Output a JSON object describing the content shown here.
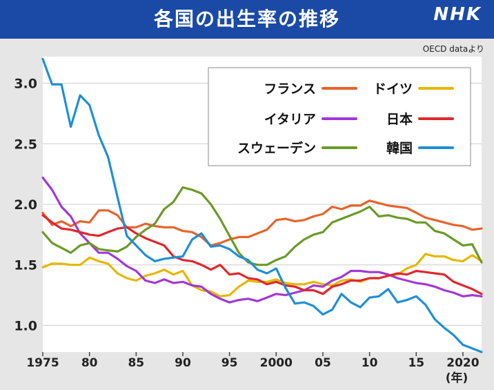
{
  "header": {
    "title": "各国の出生率の推移",
    "brand": "NHK"
  },
  "source_note": "OECD dataより",
  "colors": {
    "header_bg": "#1a4aa6",
    "plot_bg": "#ffffff",
    "page_bg": "#e6e6e6"
  },
  "chart_data": {
    "type": "line",
    "title": "各国の出生率の推移",
    "xlabel": "",
    "ylabel": "",
    "xlim": [
      1975,
      2022
    ],
    "ylim": [
      0.78,
      3.22
    ],
    "y_ticks": [
      1.0,
      1.5,
      2.0,
      2.5,
      3.0
    ],
    "y_tick_labels": [
      "1.0",
      "1.5",
      "2.0",
      "2.5",
      "3.0"
    ],
    "x_ticks": [
      1975,
      1980,
      1985,
      1990,
      1995,
      2000,
      2005,
      2010,
      2015,
      2020
    ],
    "x_tick_labels": [
      "1975",
      "80",
      "85",
      "90",
      "95",
      "2000",
      "05",
      "10",
      "15",
      "2020"
    ],
    "x_unit_label": "(年)",
    "grid": "horizontal",
    "legend_position": "top-right",
    "x": [
      1975,
      1976,
      1977,
      1978,
      1979,
      1980,
      1981,
      1982,
      1983,
      1984,
      1985,
      1986,
      1987,
      1988,
      1989,
      1990,
      1991,
      1992,
      1993,
      1994,
      1995,
      1996,
      1997,
      1998,
      1999,
      2000,
      2001,
      2002,
      2003,
      2004,
      2005,
      2006,
      2007,
      2008,
      2009,
      2010,
      2011,
      2012,
      2013,
      2014,
      2015,
      2016,
      2017,
      2018,
      2019,
      2020,
      2021,
      2022
    ],
    "series": [
      {
        "name": "フランス",
        "color": "#e8622a",
        "values": [
          1.93,
          1.83,
          1.86,
          1.82,
          1.86,
          1.85,
          1.95,
          1.95,
          1.91,
          1.81,
          1.81,
          1.84,
          1.82,
          1.81,
          1.81,
          1.78,
          1.77,
          1.73,
          1.66,
          1.68,
          1.71,
          1.73,
          1.73,
          1.76,
          1.79,
          1.87,
          1.88,
          1.86,
          1.87,
          1.9,
          1.92,
          1.98,
          1.96,
          1.99,
          1.99,
          2.03,
          2.01,
          1.99,
          1.98,
          1.97,
          1.93,
          1.89,
          1.87,
          1.85,
          1.83,
          1.82,
          1.79,
          1.8
        ]
      },
      {
        "name": "ドイツ",
        "color": "#e5b700",
        "values": [
          1.48,
          1.51,
          1.51,
          1.5,
          1.5,
          1.56,
          1.53,
          1.51,
          1.43,
          1.39,
          1.37,
          1.41,
          1.43,
          1.46,
          1.42,
          1.45,
          1.33,
          1.29,
          1.28,
          1.24,
          1.25,
          1.32,
          1.37,
          1.36,
          1.36,
          1.38,
          1.35,
          1.34,
          1.34,
          1.36,
          1.34,
          1.33,
          1.37,
          1.38,
          1.36,
          1.39,
          1.39,
          1.41,
          1.42,
          1.47,
          1.5,
          1.59,
          1.57,
          1.57,
          1.54,
          1.53,
          1.58,
          1.53
        ]
      },
      {
        "name": "イタリア",
        "color": "#a336d6",
        "values": [
          2.22,
          2.12,
          1.98,
          1.9,
          1.76,
          1.68,
          1.6,
          1.6,
          1.55,
          1.49,
          1.45,
          1.37,
          1.35,
          1.38,
          1.35,
          1.36,
          1.33,
          1.32,
          1.26,
          1.22,
          1.19,
          1.21,
          1.22,
          1.2,
          1.23,
          1.26,
          1.25,
          1.27,
          1.29,
          1.33,
          1.32,
          1.37,
          1.4,
          1.45,
          1.45,
          1.44,
          1.44,
          1.42,
          1.39,
          1.37,
          1.35,
          1.34,
          1.32,
          1.29,
          1.27,
          1.24,
          1.25,
          1.24
        ]
      },
      {
        "name": "日本",
        "color": "#e0262d",
        "values": [
          1.91,
          1.85,
          1.8,
          1.79,
          1.77,
          1.75,
          1.74,
          1.77,
          1.8,
          1.81,
          1.76,
          1.72,
          1.69,
          1.66,
          1.57,
          1.54,
          1.53,
          1.5,
          1.46,
          1.5,
          1.42,
          1.43,
          1.39,
          1.38,
          1.34,
          1.36,
          1.33,
          1.32,
          1.29,
          1.29,
          1.26,
          1.32,
          1.34,
          1.37,
          1.37,
          1.39,
          1.39,
          1.41,
          1.43,
          1.42,
          1.45,
          1.44,
          1.43,
          1.42,
          1.36,
          1.33,
          1.3,
          1.26
        ]
      },
      {
        "name": "スウェーデン",
        "color": "#6a9a28",
        "values": [
          1.77,
          1.68,
          1.64,
          1.6,
          1.66,
          1.68,
          1.63,
          1.62,
          1.61,
          1.65,
          1.73,
          1.79,
          1.84,
          1.96,
          2.02,
          2.14,
          2.12,
          2.09,
          2.0,
          1.88,
          1.74,
          1.6,
          1.52,
          1.5,
          1.5,
          1.54,
          1.57,
          1.65,
          1.71,
          1.75,
          1.77,
          1.85,
          1.88,
          1.91,
          1.94,
          1.98,
          1.9,
          1.91,
          1.89,
          1.88,
          1.85,
          1.85,
          1.78,
          1.76,
          1.71,
          1.66,
          1.67,
          1.52
        ]
      },
      {
        "name": "韓国",
        "color": "#1e8fd5",
        "values": [
          3.2,
          2.99,
          2.99,
          2.64,
          2.9,
          2.82,
          2.57,
          2.39,
          2.06,
          1.74,
          1.66,
          1.58,
          1.53,
          1.55,
          1.56,
          1.57,
          1.71,
          1.76,
          1.65,
          1.66,
          1.63,
          1.57,
          1.54,
          1.46,
          1.43,
          1.47,
          1.31,
          1.18,
          1.19,
          1.16,
          1.09,
          1.13,
          1.26,
          1.19,
          1.15,
          1.23,
          1.24,
          1.3,
          1.19,
          1.21,
          1.24,
          1.17,
          1.05,
          0.98,
          0.92,
          0.84,
          0.81,
          0.78
        ]
      }
    ]
  }
}
